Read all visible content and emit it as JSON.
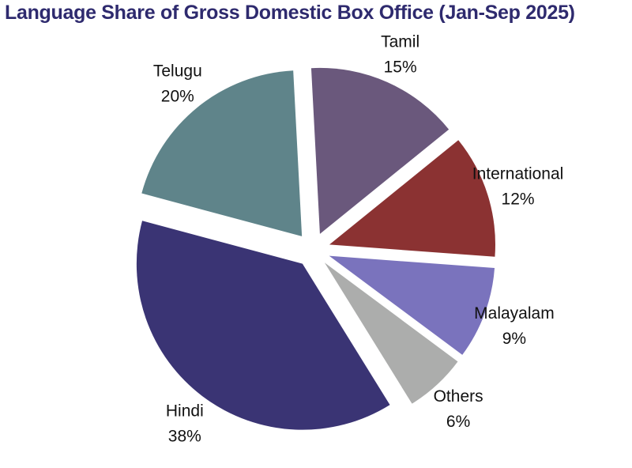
{
  "chart_data": {
    "type": "pie",
    "title": "Language Share of Gross Domestic Box Office (Jan-Sep 2025)",
    "slices": [
      {
        "label": "Telugu",
        "value": 20,
        "value_label": "20%",
        "color": "#5f848a"
      },
      {
        "label": "Tamil",
        "value": 15,
        "value_label": "15%",
        "color": "#6a587c"
      },
      {
        "label": "International",
        "value": 12,
        "value_label": "12%",
        "color": "#8b3232"
      },
      {
        "label": "Malayalam",
        "value": 9,
        "value_label": "9%",
        "color": "#7a73bd"
      },
      {
        "label": "Others",
        "value": 6,
        "value_label": "6%",
        "color": "#acadac"
      },
      {
        "label": "Hindi",
        "value": 38,
        "value_label": "38%",
        "color": "#3a3474"
      }
    ],
    "exploded": true,
    "legend": "none"
  }
}
